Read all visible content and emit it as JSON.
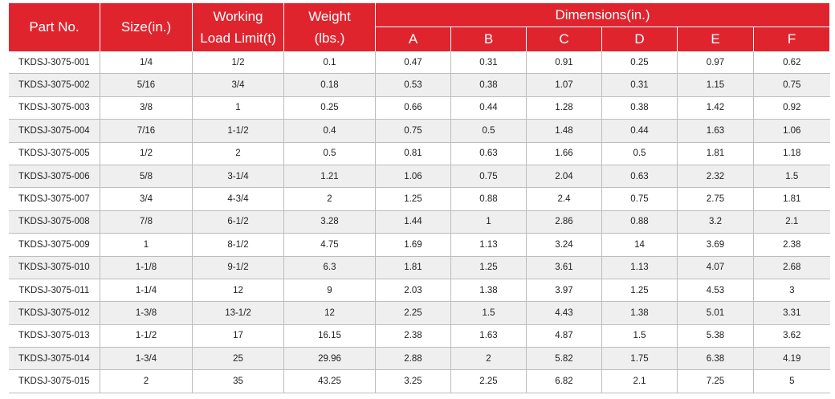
{
  "headers": {
    "part_no": "Part No.",
    "size": "Size(in.)",
    "wll_line1": "Working",
    "wll_line2": "Load Limit(t)",
    "weight_line1": "Weight",
    "weight_line2": "(lbs.)",
    "dimensions": "Dimensions(in.)",
    "dim_cols": [
      "A",
      "B",
      "C",
      "D",
      "E",
      "F"
    ]
  },
  "rows": [
    [
      "TKDSJ-3075-001",
      "1/4",
      "1/2",
      "0.1",
      "0.47",
      "0.31",
      "0.91",
      "0.25",
      "0.97",
      "0.62"
    ],
    [
      "TKDSJ-3075-002",
      "5/16",
      "3/4",
      "0.18",
      "0.53",
      "0.38",
      "1.07",
      "0.31",
      "1.15",
      "0.75"
    ],
    [
      "TKDSJ-3075-003",
      "3/8",
      "1",
      "0.25",
      "0.66",
      "0.44",
      "1.28",
      "0.38",
      "1.42",
      "0.92"
    ],
    [
      "TKDSJ-3075-004",
      "7/16",
      "1-1/2",
      "0.4",
      "0.75",
      "0.5",
      "1.48",
      "0.44",
      "1.63",
      "1.06"
    ],
    [
      "TKDSJ-3075-005",
      "1/2",
      "2",
      "0.5",
      "0.81",
      "0.63",
      "1.66",
      "0.5",
      "1.81",
      "1.18"
    ],
    [
      "TKDSJ-3075-006",
      "5/8",
      "3-1/4",
      "1.21",
      "1.06",
      "0.75",
      "2.04",
      "0.63",
      "2.32",
      "1.5"
    ],
    [
      "TKDSJ-3075-007",
      "3/4",
      "4-3/4",
      "2",
      "1.25",
      "0.88",
      "2.4",
      "0.75",
      "2.75",
      "1.81"
    ],
    [
      "TKDSJ-3075-008",
      "7/8",
      "6-1/2",
      "3.28",
      "1.44",
      "1",
      "2.86",
      "0.88",
      "3.2",
      "2.1"
    ],
    [
      "TKDSJ-3075-009",
      "1",
      "8-1/2",
      "4.75",
      "1.69",
      "1.13",
      "3.24",
      "14",
      "3.69",
      "2.38"
    ],
    [
      "TKDSJ-3075-010",
      "1-1/8",
      "9-1/2",
      "6.3",
      "1.81",
      "1.25",
      "3.61",
      "1.13",
      "4.07",
      "2.68"
    ],
    [
      "TKDSJ-3075-011",
      "1-1/4",
      "12",
      "9",
      "2.03",
      "1.38",
      "3.97",
      "1.25",
      "4.53",
      "3"
    ],
    [
      "TKDSJ-3075-012",
      "1-3/8",
      "13-1/2",
      "12",
      "2.25",
      "1.5",
      "4.43",
      "1.38",
      "5.01",
      "3.31"
    ],
    [
      "TKDSJ-3075-013",
      "1-1/2",
      "17",
      "16.15",
      "2.38",
      "1.63",
      "4.87",
      "1.5",
      "5.38",
      "3.62"
    ],
    [
      "TKDSJ-3075-014",
      "1-3/4",
      "25",
      "29.96",
      "2.88",
      "2",
      "5.82",
      "1.75",
      "6.38",
      "4.19"
    ],
    [
      "TKDSJ-3075-015",
      "2",
      "35",
      "43.25",
      "3.25",
      "2.25",
      "6.82",
      "2.1",
      "7.25",
      "5"
    ]
  ],
  "colors": {
    "header_bg": "#e0242e",
    "header_text": "#ffffff",
    "stripe": "#efefef"
  }
}
